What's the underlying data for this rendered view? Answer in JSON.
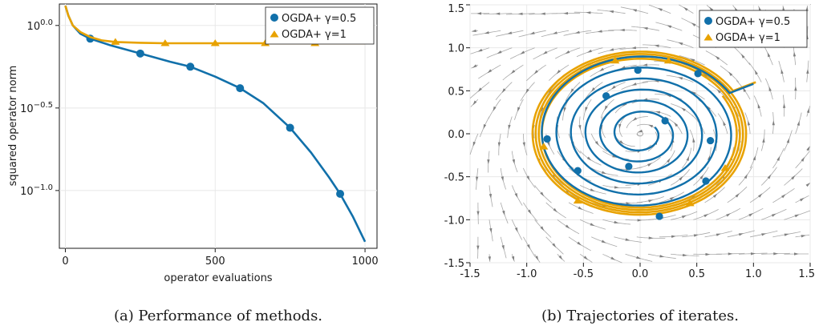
{
  "colors": {
    "blue": "#1170aa",
    "orange": "#e8a200",
    "grid": "#e8e8e8",
    "stream": "#a8a8a8",
    "arrow": "#808080"
  },
  "chart_data": [
    {
      "type": "line",
      "caption": "(a) Performance of methods.",
      "xlabel": "operator evaluations",
      "ylabel": "squared operator norm",
      "yscale": "log10",
      "xlim": [
        -20,
        1040
      ],
      "ylim_log10": [
        -1.35,
        0.13
      ],
      "xticks": [
        0,
        500,
        1000
      ],
      "xtick_labels": [
        "0",
        "500",
        "1000"
      ],
      "yticks_log10": [
        0.0,
        -0.5,
        -1.0
      ],
      "ytick_labels": [
        "10^{0.0}",
        "10^{−0.5}",
        "10^{−1.0}"
      ],
      "legend_position": "top-right",
      "series": [
        {
          "name": "OGDA+ γ=0.5",
          "marker": "circle",
          "color": "#1170aa",
          "x": [
            0,
            10,
            25,
            50,
            83,
            150,
            250,
            350,
            417,
            500,
            583,
            660,
            750,
            820,
            880,
            917,
            960,
            1000
          ],
          "y_log10": [
            0.12,
            0.06,
            0.0,
            -0.05,
            -0.08,
            -0.12,
            -0.17,
            -0.22,
            -0.25,
            -0.31,
            -0.38,
            -0.47,
            -0.62,
            -0.77,
            -0.92,
            -1.02,
            -1.16,
            -1.31
          ],
          "markers_x": [
            83,
            250,
            417,
            583,
            750,
            917
          ]
        },
        {
          "name": "OGDA+ γ=1",
          "marker": "triangle",
          "color": "#e8a200",
          "x": [
            0,
            10,
            25,
            50,
            83,
            120,
            167,
            250,
            333,
            500,
            667,
            833,
            1000
          ],
          "y_log10": [
            0.12,
            0.06,
            0.0,
            -0.04,
            -0.07,
            -0.09,
            -0.1,
            -0.105,
            -0.108,
            -0.108,
            -0.108,
            -0.108,
            -0.108
          ],
          "markers_x": [
            167,
            333,
            500,
            667,
            833
          ]
        }
      ]
    },
    {
      "type": "line",
      "caption": "(b) Trajectories of iterates.",
      "xlim": [
        -1.5,
        1.5
      ],
      "ylim": [
        -1.5,
        1.5
      ],
      "xticks": [
        -1.5,
        -1.0,
        -0.5,
        0.0,
        0.5,
        1.0,
        1.5
      ],
      "xtick_labels": [
        "-1.5",
        "-1.0",
        "-0.5",
        "0.0",
        "0.5",
        "1.0",
        "1.5"
      ],
      "yticks": [
        -1.5,
        -1.0,
        -0.5,
        0.0,
        0.5,
        1.0,
        1.5
      ],
      "ytick_labels": [
        "-1.5",
        "-1.0",
        "-0.5",
        "0.0",
        "0.5",
        "1.0",
        "1.5"
      ],
      "background": "streamplot",
      "legend_position": "top-right",
      "series": [
        {
          "name": "OGDA+ γ=0.5",
          "marker": "circle",
          "color": "#1170aa",
          "spiral": {
            "start": [
              1.0,
              0.6
            ],
            "radius_start": 0.92,
            "radius_end": 0.15,
            "turns": 6.0
          },
          "points": [
            [
              -0.02,
              0.74
            ],
            [
              0.51,
              0.7
            ],
            [
              -0.3,
              0.44
            ],
            [
              0.22,
              0.15
            ],
            [
              -0.82,
              -0.06
            ],
            [
              0.62,
              -0.08
            ],
            [
              -0.1,
              -0.38
            ],
            [
              -0.55,
              -0.43
            ],
            [
              0.58,
              -0.55
            ],
            [
              0.17,
              -0.96
            ]
          ]
        },
        {
          "name": "OGDA+ γ=1",
          "marker": "triangle",
          "color": "#e8a200",
          "spiral": {
            "start": [
              1.02,
              0.62
            ],
            "radius_start": 0.96,
            "radius_end": 0.85,
            "turns": 4.0
          },
          "points": [
            [
              -0.22,
              0.85
            ],
            [
              0.25,
              0.85
            ],
            [
              -0.85,
              -0.15
            ],
            [
              0.44,
              -0.81
            ],
            [
              -0.55,
              -0.78
            ],
            [
              0.75,
              -0.4
            ]
          ]
        }
      ]
    }
  ]
}
